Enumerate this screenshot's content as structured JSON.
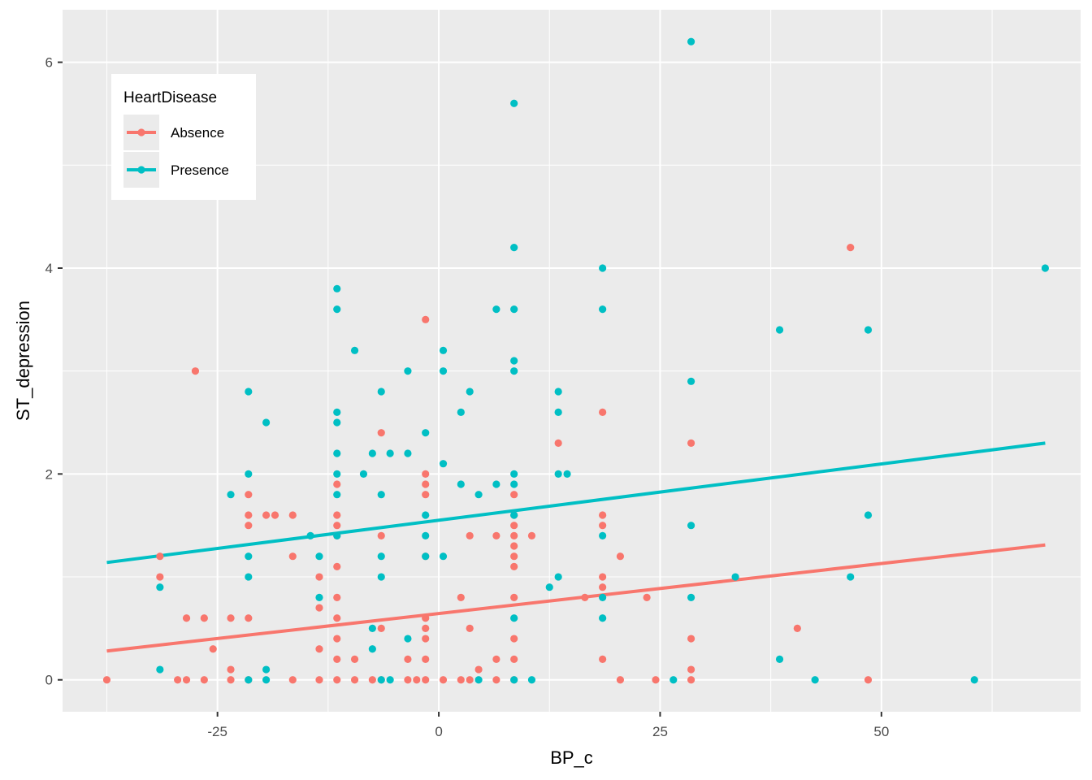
{
  "chart_data": {
    "type": "scatter",
    "title": "",
    "xlabel": "BP_c",
    "ylabel": "ST_depression",
    "xlim": [
      -42.5,
      72.5
    ],
    "ylim": [
      -0.31,
      6.51
    ],
    "x_ticks": [
      -25,
      0,
      25,
      50
    ],
    "x_tick_labels": [
      "-25",
      "0",
      "25",
      "50"
    ],
    "y_ticks": [
      0,
      2,
      4,
      6
    ],
    "y_tick_labels": [
      "0",
      "2",
      "4",
      "6"
    ],
    "grid": true,
    "legend": {
      "title": "HeartDisease",
      "position": "top-left",
      "entries": [
        "Absence",
        "Presence"
      ]
    },
    "series": [
      {
        "name": "Absence",
        "color": "#F8766D",
        "trend_line": {
          "x": [
            -37.5,
            68.5
          ],
          "y": [
            0.28,
            1.31
          ]
        },
        "points": [
          [
            -37.5,
            0
          ],
          [
            -31.5,
            1.2
          ],
          [
            -31.5,
            1.0
          ],
          [
            -29.5,
            0
          ],
          [
            -28.5,
            0
          ],
          [
            -28.5,
            0.6
          ],
          [
            -27.5,
            3.0
          ],
          [
            -26.5,
            0
          ],
          [
            -26.5,
            0.6
          ],
          [
            -25.5,
            0.3
          ],
          [
            -23.5,
            0
          ],
          [
            -23.5,
            0.1
          ],
          [
            -23.5,
            0.6
          ],
          [
            -21.5,
            0
          ],
          [
            -21.5,
            0.6
          ],
          [
            -21.5,
            1.5
          ],
          [
            -21.5,
            1.6
          ],
          [
            -21.5,
            1.8
          ],
          [
            -19.5,
            1.6
          ],
          [
            -18.5,
            1.6
          ],
          [
            -16.5,
            0
          ],
          [
            -16.5,
            1.2
          ],
          [
            -16.5,
            1.6
          ],
          [
            -13.5,
            0
          ],
          [
            -13.5,
            0.3
          ],
          [
            -13.5,
            0.7
          ],
          [
            -13.5,
            1.0
          ],
          [
            -11.5,
            0
          ],
          [
            -11.5,
            0.2
          ],
          [
            -11.5,
            0.4
          ],
          [
            -11.5,
            0.6
          ],
          [
            -11.5,
            0.8
          ],
          [
            -11.5,
            1.1
          ],
          [
            -11.5,
            1.4
          ],
          [
            -11.5,
            1.5
          ],
          [
            -11.5,
            1.6
          ],
          [
            -11.5,
            1.9
          ],
          [
            -9.5,
            0
          ],
          [
            -9.5,
            0.2
          ],
          [
            -7.5,
            0
          ],
          [
            -6.5,
            0
          ],
          [
            -6.5,
            0.5
          ],
          [
            -6.5,
            1.4
          ],
          [
            -6.5,
            2.4
          ],
          [
            -3.5,
            0
          ],
          [
            -3.5,
            0.2
          ],
          [
            -2.5,
            0
          ],
          [
            -1.5,
            0
          ],
          [
            -1.5,
            0.2
          ],
          [
            -1.5,
            0.4
          ],
          [
            -1.5,
            0.5
          ],
          [
            -1.5,
            0.6
          ],
          [
            -1.5,
            1.2
          ],
          [
            -1.5,
            1.8
          ],
          [
            -1.5,
            1.9
          ],
          [
            -1.5,
            2.0
          ],
          [
            -1.5,
            3.5
          ],
          [
            0.5,
            0
          ],
          [
            2.5,
            0
          ],
          [
            2.5,
            0.8
          ],
          [
            3.5,
            0
          ],
          [
            3.5,
            0.5
          ],
          [
            3.5,
            1.4
          ],
          [
            4.5,
            0.1
          ],
          [
            6.5,
            0
          ],
          [
            6.5,
            0.2
          ],
          [
            6.5,
            1.4
          ],
          [
            8.5,
            0
          ],
          [
            8.5,
            0.2
          ],
          [
            8.5,
            0.4
          ],
          [
            8.5,
            0.8
          ],
          [
            8.5,
            1.1
          ],
          [
            8.5,
            1.2
          ],
          [
            8.5,
            1.3
          ],
          [
            8.5,
            1.4
          ],
          [
            8.5,
            1.5
          ],
          [
            8.5,
            1.6
          ],
          [
            8.5,
            1.8
          ],
          [
            10.5,
            1.4
          ],
          [
            13.5,
            2.3
          ],
          [
            16.5,
            0.8
          ],
          [
            18.5,
            0.2
          ],
          [
            18.5,
            0.9
          ],
          [
            18.5,
            1.0
          ],
          [
            18.5,
            1.5
          ],
          [
            18.5,
            1.6
          ],
          [
            18.5,
            2.6
          ],
          [
            20.5,
            0
          ],
          [
            20.5,
            1.2
          ],
          [
            23.5,
            0.8
          ],
          [
            24.5,
            0
          ],
          [
            28.5,
            0
          ],
          [
            28.5,
            0.1
          ],
          [
            28.5,
            0.4
          ],
          [
            28.5,
            2.3
          ],
          [
            40.5,
            0.5
          ],
          [
            46.5,
            4.2
          ],
          [
            48.5,
            0
          ]
        ]
      },
      {
        "name": "Presence",
        "color": "#00BFC4",
        "trend_line": {
          "x": [
            -37.5,
            68.5
          ],
          "y": [
            1.14,
            2.3
          ]
        },
        "points": [
          [
            -31.5,
            0.9
          ],
          [
            -31.5,
            0.1
          ],
          [
            -23.5,
            1.8
          ],
          [
            -21.5,
            0
          ],
          [
            -21.5,
            1.0
          ],
          [
            -21.5,
            1.2
          ],
          [
            -21.5,
            2.0
          ],
          [
            -21.5,
            2.8
          ],
          [
            -19.5,
            0
          ],
          [
            -19.5,
            0.1
          ],
          [
            -19.5,
            2.5
          ],
          [
            -14.5,
            1.4
          ],
          [
            -13.5,
            0.8
          ],
          [
            -13.5,
            1.2
          ],
          [
            -11.5,
            1.4
          ],
          [
            -11.5,
            1.8
          ],
          [
            -11.5,
            2.0
          ],
          [
            -11.5,
            2.2
          ],
          [
            -11.5,
            2.5
          ],
          [
            -11.5,
            2.6
          ],
          [
            -11.5,
            3.6
          ],
          [
            -11.5,
            3.8
          ],
          [
            -9.5,
            3.2
          ],
          [
            -8.5,
            2.0
          ],
          [
            -7.5,
            0.3
          ],
          [
            -7.5,
            0.5
          ],
          [
            -7.5,
            2.2
          ],
          [
            -6.5,
            0
          ],
          [
            -6.5,
            1.0
          ],
          [
            -6.5,
            1.2
          ],
          [
            -6.5,
            1.8
          ],
          [
            -6.5,
            2.8
          ],
          [
            -5.5,
            0
          ],
          [
            -5.5,
            2.2
          ],
          [
            -3.5,
            0.4
          ],
          [
            -3.5,
            2.2
          ],
          [
            -3.5,
            3.0
          ],
          [
            -1.5,
            1.2
          ],
          [
            -1.5,
            1.4
          ],
          [
            -1.5,
            1.6
          ],
          [
            -1.5,
            2.4
          ],
          [
            0.5,
            1.2
          ],
          [
            0.5,
            2.1
          ],
          [
            0.5,
            3.0
          ],
          [
            0.5,
            3.2
          ],
          [
            2.5,
            1.9
          ],
          [
            2.5,
            2.6
          ],
          [
            3.5,
            2.8
          ],
          [
            4.5,
            0
          ],
          [
            4.5,
            1.8
          ],
          [
            6.5,
            1.9
          ],
          [
            6.5,
            3.6
          ],
          [
            8.5,
            0
          ],
          [
            8.5,
            0.6
          ],
          [
            8.5,
            1.6
          ],
          [
            8.5,
            1.9
          ],
          [
            8.5,
            2.0
          ],
          [
            8.5,
            3.0
          ],
          [
            8.5,
            3.1
          ],
          [
            8.5,
            3.6
          ],
          [
            8.5,
            4.2
          ],
          [
            8.5,
            5.6
          ],
          [
            10.5,
            0
          ],
          [
            12.5,
            0.9
          ],
          [
            13.5,
            1.0
          ],
          [
            13.5,
            2.0
          ],
          [
            13.5,
            2.6
          ],
          [
            13.5,
            2.8
          ],
          [
            14.5,
            2.0
          ],
          [
            18.5,
            0.6
          ],
          [
            18.5,
            0.8
          ],
          [
            18.5,
            1.4
          ],
          [
            18.5,
            3.6
          ],
          [
            18.5,
            4.0
          ],
          [
            26.5,
            0
          ],
          [
            28.5,
            0.8
          ],
          [
            28.5,
            1.5
          ],
          [
            28.5,
            2.9
          ],
          [
            28.5,
            6.2
          ],
          [
            33.5,
            1.0
          ],
          [
            38.5,
            0.2
          ],
          [
            38.5,
            3.4
          ],
          [
            42.5,
            0
          ],
          [
            46.5,
            1.0
          ],
          [
            48.5,
            1.6
          ],
          [
            48.5,
            3.4
          ],
          [
            60.5,
            0
          ],
          [
            68.5,
            4.0
          ]
        ]
      }
    ]
  }
}
